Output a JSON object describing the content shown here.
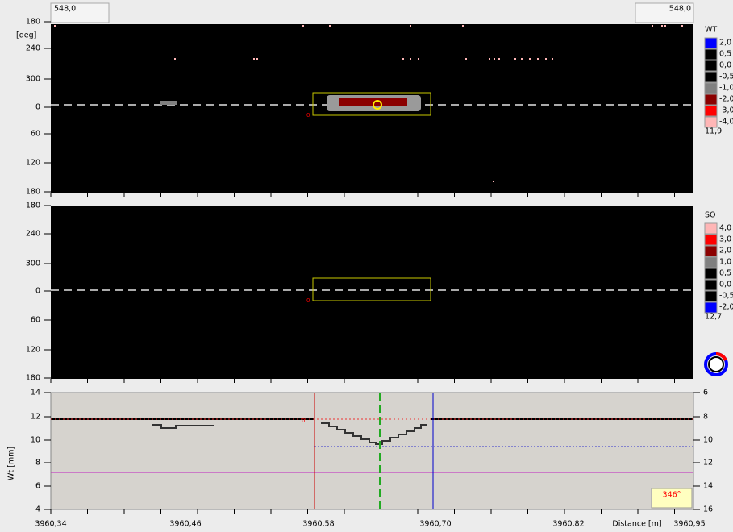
{
  "toolbar": {
    "left_value": "548,0",
    "right_value": "548,0"
  },
  "panel_wt": {
    "y_unit": "[deg]",
    "y_labels": [
      "180",
      "240",
      "300",
      "0",
      "60",
      "120",
      "180"
    ],
    "legend": {
      "title": "WT",
      "items": [
        {
          "label": "2,0",
          "color": "#0000ff"
        },
        {
          "label": "0,5",
          "color": "#000000"
        },
        {
          "label": "0,0",
          "color": "#000000"
        },
        {
          "label": "-0,5",
          "color": "#000000"
        },
        {
          "label": "-1,0",
          "color": "#808080"
        },
        {
          "label": "-2,0",
          "color": "#8b0000"
        },
        {
          "label": "-3,0",
          "color": "#ff0000"
        },
        {
          "label": "-4,0",
          "color": "#ffb6b6"
        }
      ],
      "footer": "11,9"
    }
  },
  "panel_so": {
    "y_labels": [
      "180",
      "240",
      "300",
      "0",
      "60",
      "120",
      "180"
    ],
    "legend": {
      "title": "SO",
      "items": [
        {
          "label": "4,0",
          "color": "#ffb6b6"
        },
        {
          "label": "3,0",
          "color": "#ff0000"
        },
        {
          "label": "2,0",
          "color": "#8b0000"
        },
        {
          "label": "1,0",
          "color": "#808080"
        },
        {
          "label": "0,5",
          "color": "#000000"
        },
        {
          "label": "0,0",
          "color": "#000000"
        },
        {
          "label": "-0,5",
          "color": "#000000"
        },
        {
          "label": "-2,0",
          "color": "#0000ff"
        }
      ],
      "footer": "12,7"
    }
  },
  "profile": {
    "y_label": "Wt [mm]",
    "left_labels": [
      "14",
      "12",
      "10",
      "8",
      "6",
      "4"
    ],
    "right_labels": [
      "6",
      "8",
      "10",
      "12",
      "14",
      "16"
    ],
    "x_labels": [
      "3960,34",
      "3960,46",
      "3960,58",
      "3960,70",
      "3960,82",
      "3960,95"
    ],
    "x_title": "Distance [m]",
    "angle": "346°"
  }
}
